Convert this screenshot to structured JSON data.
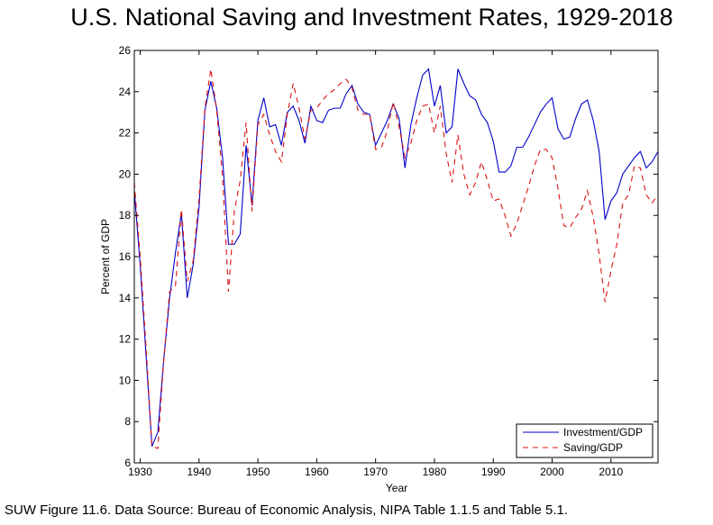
{
  "chart_data": {
    "type": "line",
    "title": "U.S. National Saving and Investment Rates, 1929-2018",
    "xlabel": "Year",
    "ylabel": "Percent of GDP",
    "xlim": [
      1929,
      2018
    ],
    "ylim": [
      6,
      26
    ],
    "xticks": [
      1930,
      1940,
      1950,
      1960,
      1970,
      1980,
      1990,
      2000,
      2010
    ],
    "yticks": [
      6,
      8,
      10,
      12,
      14,
      16,
      18,
      20,
      22,
      24,
      26
    ],
    "grid": false,
    "legend_position": "bottom-right",
    "x": [
      1929,
      1930,
      1931,
      1932,
      1933,
      1934,
      1935,
      1936,
      1937,
      1938,
      1939,
      1940,
      1941,
      1942,
      1943,
      1944,
      1945,
      1946,
      1947,
      1948,
      1949,
      1950,
      1951,
      1952,
      1953,
      1954,
      1955,
      1956,
      1957,
      1958,
      1959,
      1960,
      1961,
      1962,
      1963,
      1964,
      1965,
      1966,
      1967,
      1968,
      1969,
      1970,
      1971,
      1972,
      1973,
      1974,
      1975,
      1976,
      1977,
      1978,
      1979,
      1980,
      1981,
      1982,
      1983,
      1984,
      1985,
      1986,
      1987,
      1988,
      1989,
      1990,
      1991,
      1992,
      1993,
      1994,
      1995,
      1996,
      1997,
      1998,
      1999,
      2000,
      2001,
      2002,
      2003,
      2004,
      2005,
      2006,
      2007,
      2008,
      2009,
      2010,
      2011,
      2012,
      2013,
      2014,
      2015,
      2016,
      2017,
      2018
    ],
    "series": [
      {
        "name": "Investment/GDP",
        "color": "#0000cc",
        "style": "solid",
        "values": [
          19.2,
          15.6,
          11.2,
          6.8,
          7.5,
          11.0,
          14.0,
          16.2,
          18.1,
          14.0,
          15.6,
          18.4,
          23.1,
          24.5,
          23.2,
          20.8,
          16.6,
          16.6,
          17.1,
          21.4,
          18.5,
          22.6,
          23.7,
          22.3,
          22.4,
          21.4,
          23.0,
          23.3,
          22.6,
          21.5,
          23.3,
          22.6,
          22.5,
          23.1,
          23.2,
          23.2,
          23.9,
          24.3,
          23.4,
          23.0,
          22.9,
          21.4,
          22.0,
          22.6,
          23.4,
          22.7,
          20.3,
          22.4,
          23.7,
          24.8,
          25.1,
          23.3,
          24.3,
          22.0,
          22.3,
          25.1,
          24.4,
          23.8,
          23.6,
          22.9,
          22.5,
          21.6,
          20.1,
          20.1,
          20.4,
          21.3,
          21.3,
          21.8,
          22.4,
          23.0,
          23.4,
          23.7,
          22.2,
          21.7,
          21.8,
          22.7,
          23.4,
          23.6,
          22.6,
          21.1,
          17.8,
          18.7,
          19.1,
          20.0,
          20.4,
          20.8,
          21.1,
          20.3,
          20.6,
          21.1
        ]
      },
      {
        "name": "Saving/GDP",
        "color": "#dd1111",
        "style": "dashed",
        "values": [
          19.6,
          16.0,
          11.6,
          6.8,
          6.7,
          11.0,
          14.3,
          14.6,
          18.3,
          14.8,
          15.8,
          18.8,
          23.2,
          25.1,
          23.1,
          19.9,
          14.3,
          18.2,
          19.7,
          22.5,
          18.2,
          22.4,
          22.9,
          21.9,
          21.1,
          20.6,
          22.9,
          24.4,
          23.2,
          21.7,
          23.1,
          23.2,
          23.6,
          23.9,
          24.1,
          24.4,
          24.6,
          24.2,
          23.1,
          22.9,
          22.9,
          21.2,
          21.3,
          22.1,
          23.5,
          22.3,
          20.8,
          21.5,
          22.6,
          23.3,
          23.4,
          22.0,
          23.3,
          21.0,
          19.6,
          21.9,
          20.0,
          19.0,
          19.6,
          20.6,
          19.7,
          18.7,
          18.8,
          18.0,
          17.0,
          17.6,
          18.5,
          19.4,
          20.4,
          21.2,
          21.2,
          20.8,
          19.3,
          17.5,
          17.4,
          17.9,
          18.3,
          19.2,
          17.9,
          16.1,
          13.8,
          15.3,
          16.6,
          18.6,
          19.0,
          20.4,
          20.3,
          19.0,
          18.6,
          19.0
        ]
      }
    ]
  },
  "caption": "SUW Figure 11.6. Data Source: Bureau of Economic Analysis, NIPA Table 1.1.5 and Table 5.1."
}
